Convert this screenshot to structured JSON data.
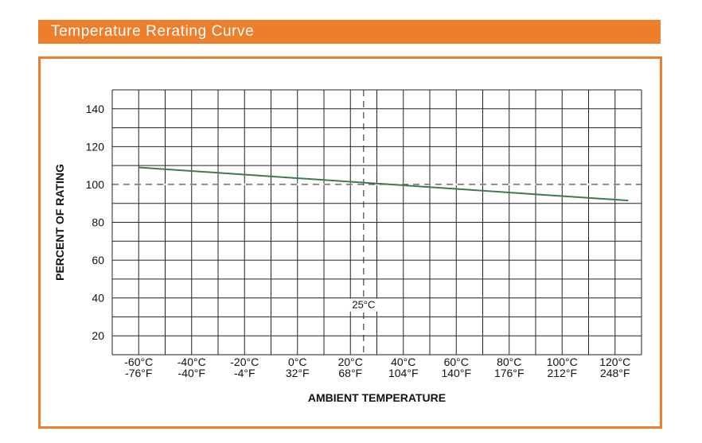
{
  "header": {
    "title": "Temperature Rerating Curve"
  },
  "colors": {
    "accent": "#ee7d2c",
    "curve": "#3d7a4e",
    "grid": "#222222"
  },
  "chart_data": {
    "type": "line",
    "title": "Temperature Rerating Curve",
    "xlabel": "AMBIENT TEMPERATURE",
    "ylabel": "PERCENT OF RATING",
    "xlim": [
      -70,
      130
    ],
    "ylim": [
      10,
      150
    ],
    "x_ticks_c": [
      "-60°C",
      "-40°C",
      "-20°C",
      "0°C",
      "20°C",
      "40°C",
      "60°C",
      "80°C",
      "100°C",
      "120°C"
    ],
    "x_ticks_f": [
      "-76°F",
      "-40°F",
      "-4°F",
      "32°F",
      "68°F",
      "104°F",
      "140°F",
      "176°F",
      "212°F",
      "248°F"
    ],
    "y_ticks": [
      "20",
      "40",
      "60",
      "80",
      "100",
      "120",
      "140"
    ],
    "reference_lines": {
      "x": 25,
      "y": 100,
      "x_label": "25°C"
    },
    "series": [
      {
        "name": "Percent of rating",
        "x": [
          -60,
          125
        ],
        "y": [
          109,
          91.5
        ]
      }
    ],
    "grid": true
  }
}
